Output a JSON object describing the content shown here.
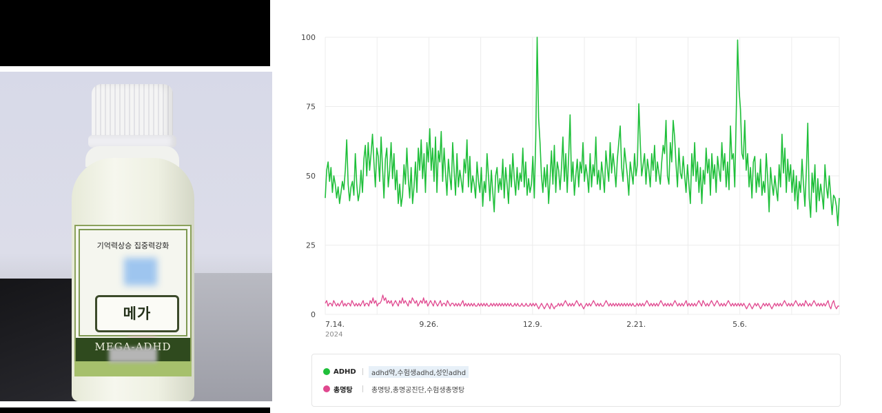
{
  "photo": {
    "label_top_text": "기억력상승 집중력강화",
    "brand_text": "메가 ADHD",
    "band_text": "MEGA-ADHD"
  },
  "colors": {
    "series_adhd": "#1fbf3a",
    "series_chongmyeong": "#e0488f",
    "grid": "#ececec"
  },
  "chart_data": {
    "type": "line",
    "ylim": [
      0,
      100
    ],
    "yticks": [
      0,
      25,
      50,
      75,
      100
    ],
    "xticks": [
      {
        "label": "7.14.",
        "sub": "2024",
        "day": 0
      },
      {
        "label": "9.26.",
        "sub": "",
        "day": 74
      },
      {
        "label": "12.9.",
        "sub": "",
        "day": 148
      },
      {
        "label": "2.21.",
        "sub": "",
        "day": 222
      },
      {
        "label": "5.6.",
        "sub": "",
        "day": 296
      }
    ],
    "x_start_day": 0,
    "x_end_day": 367,
    "series": [
      {
        "name": "ADHD",
        "keywords": "adhd약,수험생adhd,성인adhd",
        "color": "#1fbf3a",
        "values": [
          42,
          52,
          55,
          48,
          53,
          44,
          50,
          47,
          42,
          46,
          40,
          44,
          48,
          45,
          52,
          63,
          47,
          41,
          46,
          48,
          43,
          58,
          47,
          41,
          44,
          52,
          44,
          56,
          61,
          50,
          62,
          52,
          58,
          65,
          55,
          46,
          60,
          57,
          48,
          64,
          53,
          42,
          56,
          60,
          46,
          52,
          62,
          49,
          58,
          45,
          52,
          40,
          47,
          39,
          43,
          54,
          47,
          60,
          49,
          42,
          53,
          40,
          46,
          55,
          44,
          60,
          52,
          63,
          49,
          58,
          44,
          62,
          55,
          67,
          52,
          60,
          48,
          64,
          44,
          59,
          55,
          66,
          48,
          60,
          51,
          43,
          56,
          50,
          45,
          62,
          52,
          43,
          58,
          46,
          52,
          48,
          44,
          56,
          51,
          63,
          46,
          57,
          44,
          50,
          47,
          42,
          55,
          48,
          44,
          53,
          39,
          48,
          44,
          58,
          50,
          41,
          52,
          44,
          37,
          50,
          53,
          44,
          49,
          45,
          56,
          42,
          53,
          47,
          40,
          54,
          46,
          58,
          49,
          43,
          53,
          45,
          51,
          48,
          60,
          46,
          55,
          43,
          49,
          44,
          47,
          57,
          42,
          63,
          100,
          71,
          62,
          50,
          44,
          53,
          46,
          54,
          40,
          49,
          59,
          47,
          61,
          44,
          55,
          52,
          45,
          53,
          64,
          48,
          58,
          44,
          57,
          72,
          48,
          55,
          43,
          50,
          56,
          46,
          55,
          51,
          62,
          48,
          54,
          50,
          44,
          58,
          46,
          54,
          50,
          64,
          47,
          52,
          45,
          55,
          50,
          44,
          59,
          53,
          48,
          62,
          51,
          58,
          53,
          46,
          56,
          62,
          68,
          53,
          48,
          60,
          55,
          50,
          43,
          55,
          51,
          47,
          58,
          50,
          54,
          76,
          62,
          50,
          54,
          58,
          47,
          56,
          52,
          46,
          58,
          52,
          61,
          48,
          55,
          51,
          47,
          55,
          61,
          58,
          70,
          50,
          47,
          62,
          55,
          70,
          64,
          54,
          46,
          60,
          51,
          49,
          57,
          50,
          44,
          54,
          47,
          40,
          58,
          50,
          62,
          48,
          55,
          44,
          53,
          40,
          52,
          47,
          60,
          51,
          56,
          43,
          58,
          49,
          54,
          44,
          57,
          52,
          48,
          62,
          52,
          58,
          46,
          55,
          45,
          68,
          56,
          58,
          46,
          71,
          99,
          81,
          74,
          58,
          56,
          70,
          52,
          58,
          46,
          53,
          42,
          55,
          57,
          44,
          51,
          46,
          56,
          43,
          48,
          44,
          58,
          49,
          37,
          53,
          47,
          43,
          50,
          45,
          41,
          54,
          46,
          65,
          51,
          60,
          44,
          56,
          48,
          54,
          44,
          52,
          41,
          50,
          38,
          48,
          44,
          56,
          47,
          39,
          52,
          69,
          42,
          35,
          51,
          44,
          54,
          37,
          49,
          41,
          47,
          43,
          38,
          54,
          46,
          42,
          50,
          43,
          36,
          43,
          42,
          39,
          32,
          42
        ]
      },
      {
        "name": "총명탕",
        "keywords": "총명탕,총명공진단,수험생총명탕",
        "color": "#e0488f",
        "values": [
          4,
          5,
          3,
          4,
          4,
          3,
          5,
          4,
          3,
          4,
          3,
          4,
          5,
          3,
          4,
          3,
          4,
          4,
          3,
          5,
          4,
          3,
          4,
          3,
          4,
          3,
          4,
          5,
          3,
          4,
          4,
          3,
          5,
          4,
          6,
          4,
          5,
          3,
          4,
          4,
          5,
          7,
          5,
          6,
          4,
          5,
          4,
          5,
          3,
          4,
          5,
          4,
          3,
          5,
          4,
          6,
          4,
          5,
          4,
          3,
          5,
          4,
          6,
          5,
          4,
          5,
          3,
          4,
          5,
          4,
          6,
          4,
          5,
          3,
          4,
          5,
          4,
          3,
          5,
          4,
          3,
          4,
          5,
          3,
          4,
          4,
          3,
          5,
          4,
          3,
          4,
          4,
          3,
          4,
          3,
          4,
          3,
          4,
          5,
          3,
          4,
          3,
          4,
          3,
          4,
          3,
          4,
          3,
          3,
          4,
          3,
          4,
          3,
          4,
          3,
          4,
          3,
          3,
          4,
          3,
          4,
          3,
          4,
          3,
          4,
          3,
          4,
          3,
          4,
          3,
          4,
          3,
          4,
          3,
          3,
          4,
          3,
          4,
          3,
          3,
          4,
          3,
          3,
          4,
          3,
          3,
          4,
          3,
          4,
          3,
          4,
          3,
          2,
          3,
          4,
          3,
          2,
          3,
          4,
          3,
          2,
          4,
          3,
          2,
          3,
          3,
          4,
          3,
          4,
          3,
          4,
          5,
          4,
          3,
          4,
          3,
          4,
          3,
          4,
          5,
          4,
          3,
          4,
          3,
          2,
          3,
          4,
          3,
          4,
          3,
          4,
          5,
          4,
          3,
          4,
          3,
          4,
          3,
          3,
          4,
          5,
          4,
          3,
          4,
          3,
          4,
          3,
          4,
          3,
          4,
          3,
          4,
          3,
          4,
          3,
          4,
          3,
          4,
          3,
          4,
          3,
          3,
          4,
          3,
          4,
          3,
          4,
          3,
          4,
          5,
          4,
          3,
          4,
          3,
          4,
          3,
          4,
          3,
          4,
          5,
          4,
          3,
          4,
          3,
          4,
          3,
          4,
          3,
          4,
          5,
          4,
          3,
          4,
          3,
          4,
          3,
          4,
          5,
          3,
          4,
          3,
          4,
          3,
          4,
          3,
          4,
          5,
          4,
          3,
          5,
          4,
          3,
          4,
          3,
          4,
          5,
          4,
          3,
          4,
          5,
          4,
          3,
          4,
          3,
          4,
          3,
          4,
          5,
          4,
          3,
          4,
          3,
          4,
          3,
          4,
          3,
          4,
          3,
          4,
          3,
          2,
          3,
          4,
          3,
          2,
          3,
          4,
          3,
          4,
          3,
          2,
          3,
          4,
          3,
          4,
          3,
          4,
          3,
          2,
          3,
          4,
          3,
          4,
          3,
          4,
          3,
          4,
          5,
          4,
          3,
          4,
          3,
          4,
          3,
          4,
          5,
          4,
          3,
          4,
          3,
          4,
          3,
          5,
          4,
          3,
          4,
          3,
          4,
          5,
          4,
          3,
          4,
          3,
          4,
          3,
          4,
          3,
          4,
          5,
          3,
          2,
          4,
          5,
          3,
          2,
          3,
          3
        ]
      }
    ]
  }
}
